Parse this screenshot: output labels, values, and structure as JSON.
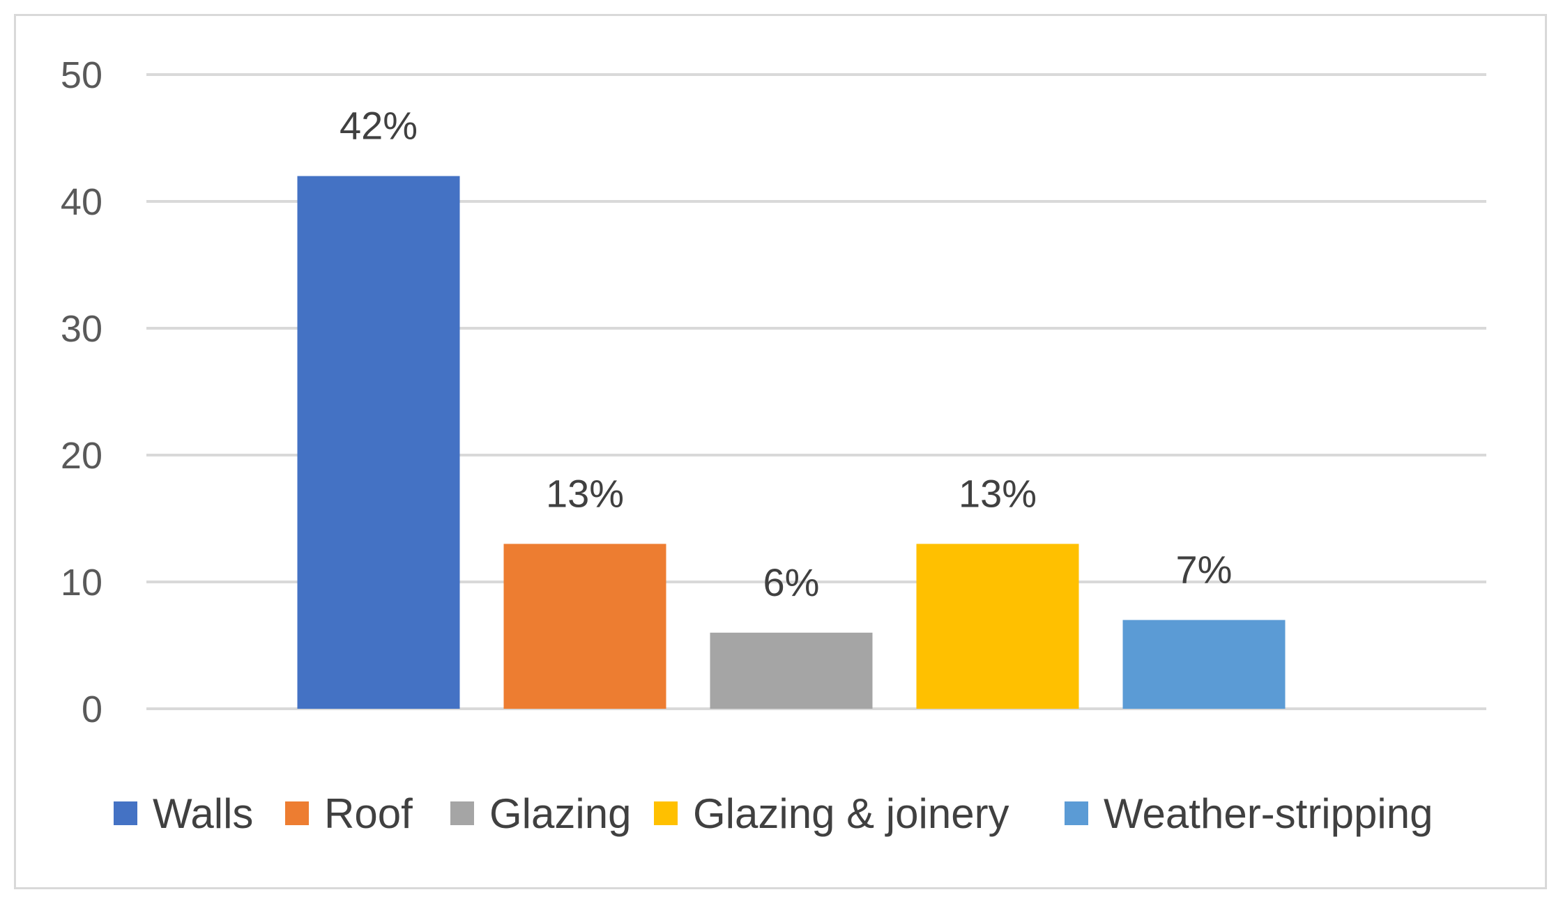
{
  "chart_data": {
    "type": "bar",
    "categories": [
      "Walls",
      "Roof",
      "Glazing",
      "Glazing & joinery",
      "Weather-stripping"
    ],
    "values": [
      42,
      13,
      6,
      13,
      7
    ],
    "data_labels": [
      "42%",
      "13%",
      "6%",
      "13%",
      "7%"
    ],
    "colors": [
      "#4472C4",
      "#ED7D31",
      "#A5A5A5",
      "#FFC000",
      "#5B9BD5"
    ],
    "ylim": [
      0,
      50
    ],
    "yticks": [
      0,
      10,
      20,
      30,
      40,
      50
    ],
    "ytick_labels": [
      "0",
      "10",
      "20",
      "30",
      "40",
      "50"
    ],
    "gridlines": true,
    "legend": {
      "position": "bottom",
      "entries": [
        "Walls",
        "Roof",
        "Glazing",
        "Glazing & joinery",
        "Weather-stripping"
      ]
    },
    "title": "",
    "xlabel": "",
    "ylabel": ""
  }
}
